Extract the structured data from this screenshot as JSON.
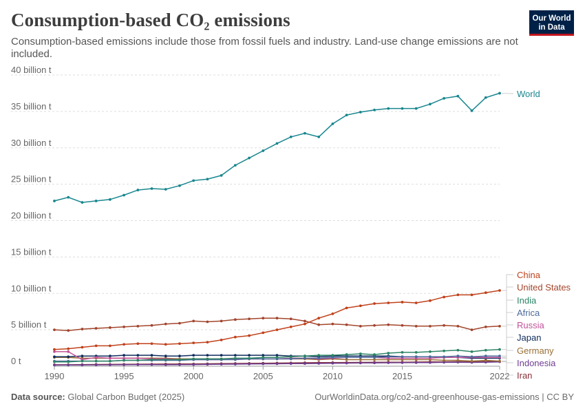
{
  "header": {
    "title": "Consumption-based CO₂ emissions",
    "subtitle": "Consumption-based emissions include those from fossil fuels and industry. Land-use change emissions are not included."
  },
  "logo": {
    "line1": "Our World",
    "line2": "in Data",
    "bg_color": "#002147",
    "accent_color": "#c2141e"
  },
  "footer": {
    "source_label": "Data source:",
    "source_value": "Global Carbon Budget (2025)",
    "right": "OurWorldinData.org/co2-and-greenhouse-gas-emissions | CC BY"
  },
  "chart_data": {
    "type": "line",
    "ylabel": "",
    "xlabel": "",
    "ylim": [
      0,
      40
    ],
    "xlim": [
      1990,
      2022
    ],
    "y_ticks": [
      {
        "value": 0,
        "label": "0 t"
      },
      {
        "value": 5,
        "label": "5 billion t"
      },
      {
        "value": 10,
        "label": "10 billion t"
      },
      {
        "value": 15,
        "label": "15 billion t"
      },
      {
        "value": 20,
        "label": "20 billion t"
      },
      {
        "value": 25,
        "label": "25 billion t"
      },
      {
        "value": 30,
        "label": "30 billion t"
      },
      {
        "value": 35,
        "label": "35 billion t"
      },
      {
        "value": 40,
        "label": "40 billion t"
      }
    ],
    "x_ticks": [
      1990,
      1995,
      2000,
      2005,
      2010,
      2015,
      2022
    ],
    "grid": "horizontal dashed",
    "legend": "right, labels at line ends",
    "x": [
      1990,
      1991,
      1992,
      1993,
      1994,
      1995,
      1996,
      1997,
      1998,
      1999,
      2000,
      2001,
      2002,
      2003,
      2004,
      2005,
      2006,
      2007,
      2008,
      2009,
      2010,
      2011,
      2012,
      2013,
      2014,
      2015,
      2016,
      2017,
      2018,
      2019,
      2020,
      2021,
      2022
    ],
    "series": [
      {
        "name": "World",
        "color": "#18868f",
        "values": [
          22.7,
          23.2,
          22.5,
          22.7,
          22.9,
          23.5,
          24.2,
          24.4,
          24.3,
          24.8,
          25.5,
          25.7,
          26.2,
          27.6,
          28.6,
          29.6,
          30.6,
          31.5,
          32.0,
          31.5,
          33.3,
          34.5,
          34.9,
          35.2,
          35.4,
          35.4,
          35.4,
          36.0,
          36.8,
          37.1,
          35.1,
          36.9,
          37.5
        ]
      },
      {
        "name": "China",
        "color": "#c0411b",
        "values": [
          2.3,
          2.4,
          2.6,
          2.8,
          2.8,
          3.0,
          3.1,
          3.1,
          3.0,
          3.1,
          3.2,
          3.3,
          3.6,
          4.0,
          4.2,
          4.6,
          5.0,
          5.4,
          5.8,
          6.6,
          7.2,
          8.0,
          8.3,
          8.6,
          8.7,
          8.8,
          8.7,
          9.0,
          9.5,
          9.8,
          9.8,
          10.1,
          10.4
        ]
      },
      {
        "name": "United States",
        "color": "#a2452c",
        "values": [
          5.0,
          4.9,
          5.1,
          5.2,
          5.3,
          5.4,
          5.5,
          5.6,
          5.8,
          5.9,
          6.2,
          6.1,
          6.2,
          6.4,
          6.5,
          6.6,
          6.6,
          6.5,
          6.2,
          5.7,
          5.8,
          5.7,
          5.5,
          5.6,
          5.7,
          5.6,
          5.5,
          5.5,
          5.6,
          5.5,
          5.0,
          5.4,
          5.5
        ]
      },
      {
        "name": "India",
        "color": "#2c8465",
        "values": [
          0.6,
          0.6,
          0.7,
          0.7,
          0.7,
          0.8,
          0.8,
          0.9,
          0.9,
          0.9,
          1.0,
          1.0,
          1.0,
          1.1,
          1.1,
          1.2,
          1.2,
          1.3,
          1.4,
          1.5,
          1.5,
          1.6,
          1.7,
          1.6,
          1.8,
          1.9,
          1.9,
          2.0,
          2.1,
          2.2,
          2.0,
          2.2,
          2.3
        ]
      },
      {
        "name": "Africa",
        "color": "#4c6a9c",
        "values": [
          0.7,
          0.7,
          0.7,
          0.7,
          0.7,
          0.8,
          0.8,
          0.8,
          0.8,
          0.8,
          0.9,
          0.9,
          0.9,
          0.9,
          1.0,
          1.0,
          1.0,
          1.0,
          1.1,
          1.1,
          1.2,
          1.2,
          1.2,
          1.2,
          1.3,
          1.3,
          1.3,
          1.3,
          1.3,
          1.4,
          1.3,
          1.4,
          1.4
        ]
      },
      {
        "name": "Russia",
        "color": "#c15198",
        "values": [
          2.0,
          2.0,
          0.9,
          1.2,
          1.1,
          1.1,
          1.1,
          1.0,
          1.0,
          0.9,
          0.9,
          0.9,
          0.9,
          1.0,
          1.0,
          1.0,
          1.0,
          1.1,
          1.1,
          1.0,
          1.1,
          1.2,
          1.2,
          1.2,
          1.1,
          1.1,
          1.1,
          1.1,
          1.2,
          1.2,
          1.2,
          1.2,
          1.2
        ]
      },
      {
        "name": "Japan",
        "color": "#0f2c5c",
        "values": [
          1.3,
          1.3,
          1.4,
          1.4,
          1.4,
          1.5,
          1.5,
          1.5,
          1.4,
          1.4,
          1.5,
          1.5,
          1.5,
          1.5,
          1.5,
          1.5,
          1.5,
          1.4,
          1.4,
          1.3,
          1.4,
          1.4,
          1.4,
          1.4,
          1.4,
          1.3,
          1.3,
          1.3,
          1.2,
          1.2,
          1.1,
          1.1,
          1.1
        ]
      },
      {
        "name": "Germany",
        "color": "#9a6f35",
        "values": [
          1.2,
          1.2,
          1.1,
          1.1,
          1.1,
          1.1,
          1.1,
          1.1,
          1.1,
          1.0,
          1.0,
          1.0,
          1.0,
          1.0,
          1.0,
          1.0,
          1.0,
          1.0,
          1.0,
          0.9,
          1.0,
          0.9,
          0.9,
          0.9,
          0.9,
          0.9,
          0.9,
          0.9,
          0.8,
          0.8,
          0.7,
          0.8,
          0.7
        ]
      },
      {
        "name": "Indonesia",
        "color": "#6d3e91",
        "values": [
          0.15,
          0.16,
          0.17,
          0.18,
          0.19,
          0.2,
          0.21,
          0.22,
          0.2,
          0.21,
          0.23,
          0.25,
          0.27,
          0.28,
          0.3,
          0.32,
          0.33,
          0.35,
          0.36,
          0.38,
          0.4,
          0.42,
          0.44,
          0.45,
          0.47,
          0.48,
          0.49,
          0.5,
          0.53,
          0.55,
          0.52,
          0.55,
          0.6
        ]
      },
      {
        "name": "Iran",
        "color": "#883039",
        "values": [
          0.2,
          0.2,
          0.22,
          0.24,
          0.25,
          0.26,
          0.27,
          0.28,
          0.29,
          0.3,
          0.31,
          0.33,
          0.35,
          0.37,
          0.39,
          0.41,
          0.43,
          0.45,
          0.47,
          0.49,
          0.5,
          0.51,
          0.52,
          0.53,
          0.55,
          0.55,
          0.57,
          0.59,
          0.6,
          0.62,
          0.6,
          0.63,
          0.65
        ]
      }
    ]
  }
}
